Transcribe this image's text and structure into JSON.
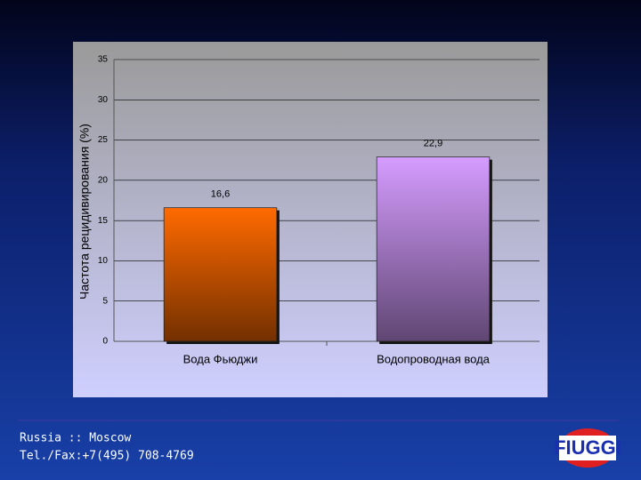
{
  "chart_data": {
    "type": "bar",
    "y_axis_label": "Частота рецидивирования (%)",
    "categories": [
      "Вода Фьюджи",
      "Водопроводная вода"
    ],
    "values": [
      16.6,
      22.9
    ],
    "value_labels": [
      "16,6",
      "22,9"
    ],
    "colors": [
      "#ff6a00",
      "#d59cff"
    ],
    "ylim": [
      0,
      35
    ],
    "yticks": [
      0,
      5,
      10,
      15,
      20,
      25,
      30,
      35
    ],
    "grid": true
  },
  "footer": {
    "lines": [
      "Russia :: Moscow",
      "Tel./Fax:+7(495) 708-4769"
    ],
    "logo": "FIUGGI"
  }
}
